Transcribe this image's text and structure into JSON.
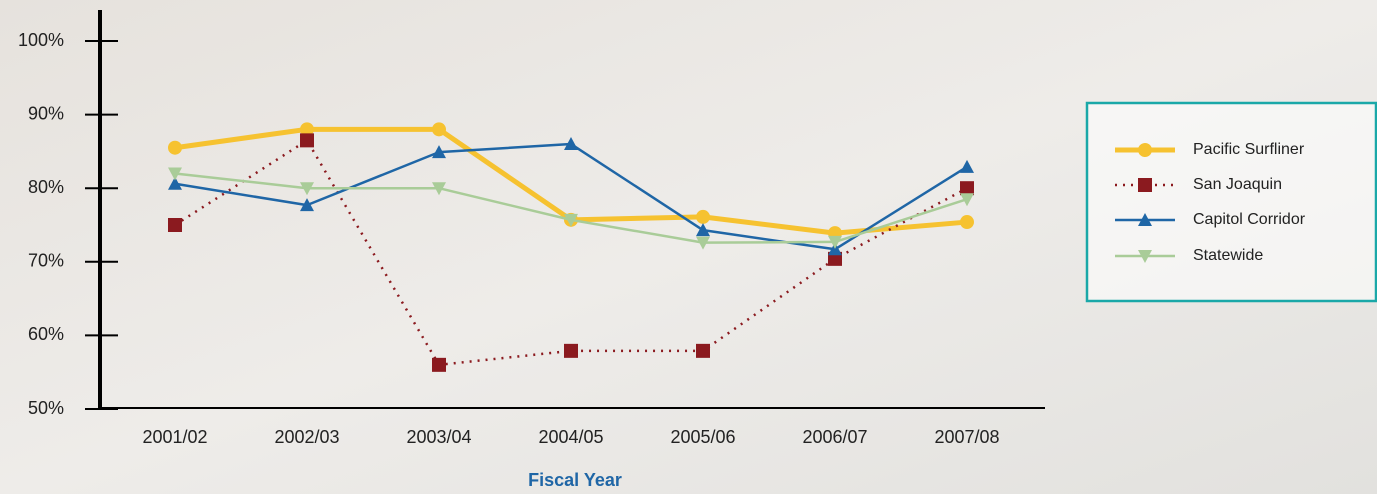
{
  "chart_data": {
    "type": "line",
    "x_label": "Fiscal Year",
    "categories": [
      "2001/02",
      "2002/03",
      "2003/04",
      "2004/05",
      "2005/06",
      "2006/07",
      "2007/08"
    ],
    "ylim": [
      50,
      100
    ],
    "yticks": [
      {
        "value": 50,
        "label": "50%"
      },
      {
        "value": 60,
        "label": "60%"
      },
      {
        "value": 70,
        "label": "70%"
      },
      {
        "value": 80,
        "label": "80%"
      },
      {
        "value": 90,
        "label": "90%"
      },
      {
        "value": 100,
        "label": "100%"
      }
    ],
    "series": [
      {
        "name": "Pacific Surfliner",
        "color": "#f6c230",
        "marker": "circle",
        "width": 5,
        "dash": "none",
        "values": [
          85.5,
          88,
          88,
          75.7,
          76.1,
          73.9,
          75.4
        ]
      },
      {
        "name": "San Joaquin",
        "color": "#8b1a1f",
        "marker": "square",
        "width": 2.5,
        "dash": "2 6",
        "values": [
          75,
          86.5,
          56,
          57.9,
          57.9,
          70.4,
          80
        ]
      },
      {
        "name": "Capitol Corridor",
        "color": "#1f66a6",
        "marker": "triangle-up",
        "width": 2.5,
        "dash": "none",
        "values": [
          80.6,
          77.7,
          84.9,
          86,
          74.3,
          71.7,
          82.9
        ]
      },
      {
        "name": "Statewide",
        "color": "#a9cc98",
        "marker": "triangle-down",
        "width": 2.5,
        "dash": "none",
        "values": [
          82,
          80,
          80,
          75.7,
          72.6,
          72.7,
          78.5
        ]
      }
    ],
    "legend": "right"
  }
}
